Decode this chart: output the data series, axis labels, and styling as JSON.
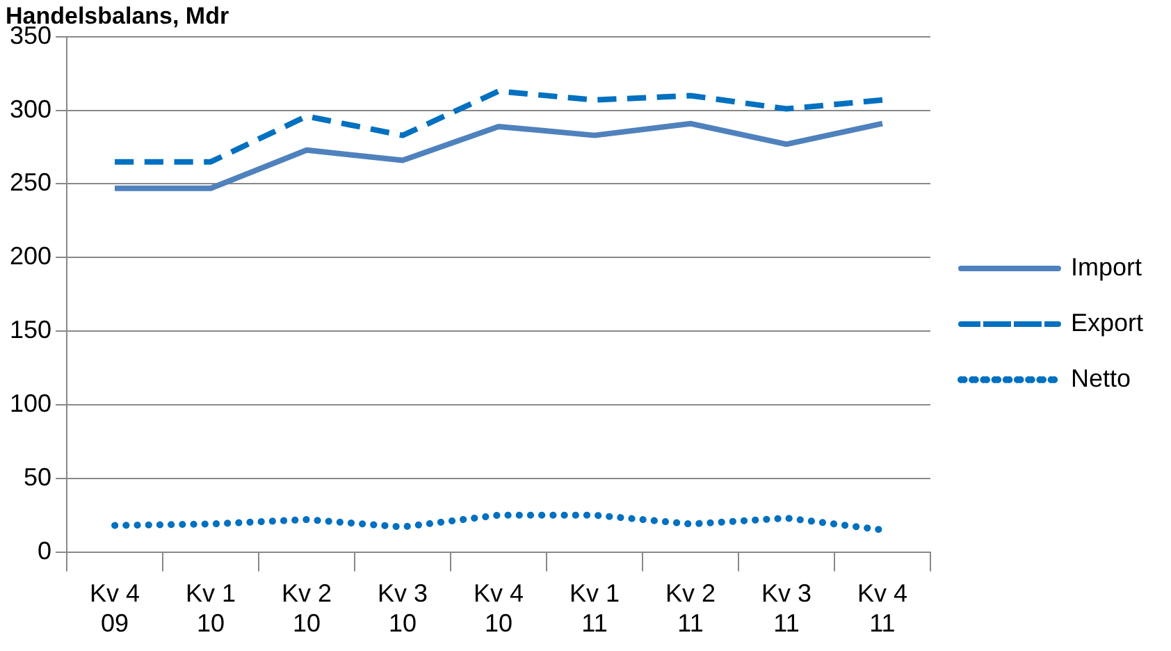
{
  "chart_data": {
    "type": "line",
    "title": "Handelsbalans, Mdr",
    "categories": [
      "Kv 4 09",
      "Kv 1 10",
      "Kv 2 10",
      "Kv 3 10",
      "Kv 4 10",
      "Kv 1 11",
      "Kv 2 11",
      "Kv 3 11",
      "Kv 4 11"
    ],
    "series": [
      {
        "name": "Import",
        "color": "#4f81bd",
        "line_style": "solid",
        "values": [
          247,
          247,
          273,
          266,
          289,
          283,
          291,
          277,
          291
        ]
      },
      {
        "name": "Export",
        "color": "#0070c0",
        "line_style": "dashed",
        "values": [
          265,
          265,
          296,
          283,
          313,
          307,
          310,
          301,
          307
        ]
      },
      {
        "name": "Netto",
        "color": "#0070c0",
        "line_style": "dotted",
        "values": [
          18,
          19,
          22,
          17,
          25,
          25,
          19,
          23,
          15
        ]
      }
    ],
    "ylim": [
      0,
      350
    ],
    "yticks": [
      0,
      50,
      100,
      150,
      200,
      250,
      300,
      350
    ],
    "grid": "y",
    "legend": "right",
    "marker": "none"
  }
}
